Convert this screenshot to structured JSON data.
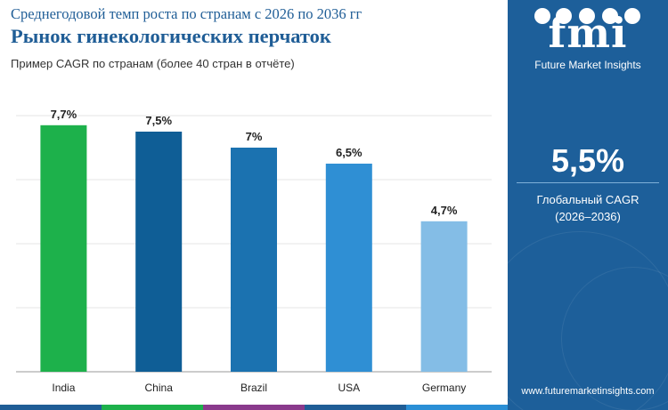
{
  "header": {
    "subtitle": "Среднегодовой темп роста по странам с 2026 по 2036 гг",
    "title": "Рынок гинекологических перчаток",
    "note": "Пример CAGR по странам (более 40 стран в отчёте)"
  },
  "chart_data": {
    "type": "bar",
    "categories": [
      "India",
      "China",
      "Brazil",
      "USA",
      "Germany"
    ],
    "values": [
      7.7,
      7.5,
      7.0,
      6.5,
      4.7
    ],
    "value_labels": [
      "7,7%",
      "7,5%",
      "7%",
      "6,5%",
      "4,7%"
    ],
    "bar_colors": [
      "#1db14b",
      "#0f5e96",
      "#1b72b0",
      "#2f8fd4",
      "#84bde6"
    ],
    "ylim": [
      0,
      8
    ],
    "grid": true,
    "legend": "none"
  },
  "sidebar": {
    "logo_text": "fmi",
    "logo_tagline": "Future Market Insights",
    "global_cagr_value": "5,5%",
    "global_cagr_label": "Глобальный CAGR",
    "global_cagr_period": "(2026–2036)",
    "website": "www.futuremarketinsights.com"
  },
  "colors": {
    "title": "#1f5d96",
    "panel": "#1d5f9a",
    "footer": [
      "#1f5d96",
      "#1db14b",
      "#8a3a8c",
      "#1f5d96",
      "#2a8fd6"
    ]
  }
}
